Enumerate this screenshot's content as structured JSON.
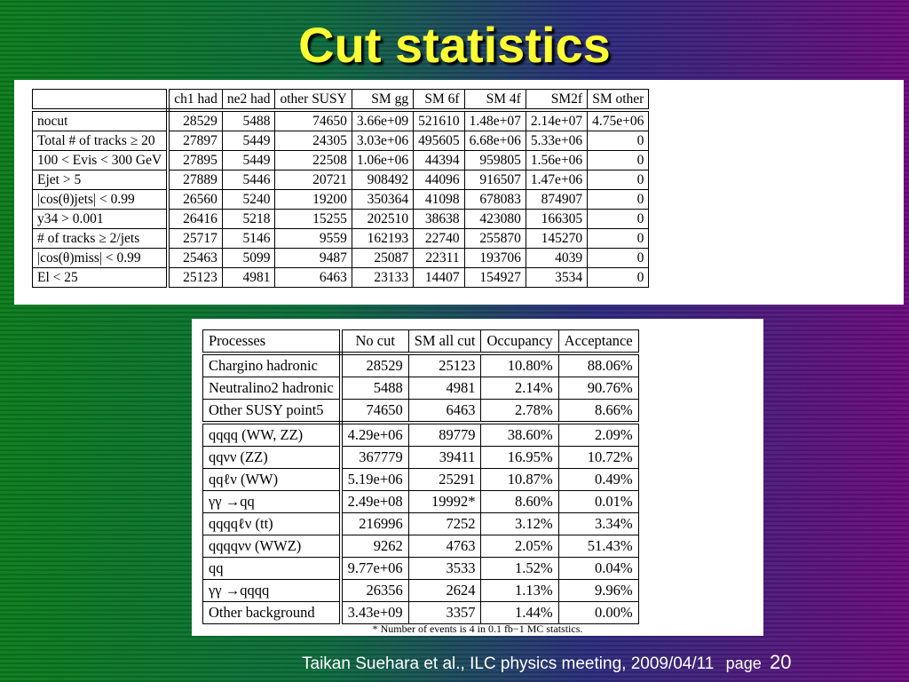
{
  "title": "Cut statistics",
  "table1": {
    "headers": [
      "ch1 had",
      "ne2 had",
      "other SUSY",
      "SM gg",
      "SM 6f",
      "SM 4f",
      "SM2f",
      "SM other"
    ],
    "rows": [
      {
        "label": "nocut",
        "values": [
          "28529",
          "5488",
          "74650",
          "3.66e+09",
          "521610",
          "1.48e+07",
          "2.14e+07",
          "4.75e+06"
        ]
      },
      {
        "label": "Total # of tracks ≥ 20",
        "values": [
          "27897",
          "5449",
          "24305",
          "3.03e+06",
          "495605",
          "6.68e+06",
          "5.33e+06",
          "0"
        ]
      },
      {
        "label": "100 < Evis < 300 GeV",
        "values": [
          "27895",
          "5449",
          "22508",
          "1.06e+06",
          "44394",
          "959805",
          "1.56e+06",
          "0"
        ]
      },
      {
        "label": "Ejet > 5",
        "values": [
          "27889",
          "5446",
          "20721",
          "908492",
          "44096",
          "916507",
          "1.47e+06",
          "0"
        ]
      },
      {
        "label": "|cos(θ)jets| < 0.99",
        "values": [
          "26560",
          "5240",
          "19200",
          "350364",
          "41098",
          "678083",
          "874907",
          "0"
        ]
      },
      {
        "label": "y34 > 0.001",
        "values": [
          "26416",
          "5218",
          "15255",
          "202510",
          "38638",
          "423080",
          "166305",
          "0"
        ]
      },
      {
        "label": "# of tracks ≥ 2/jets",
        "values": [
          "25717",
          "5146",
          "9559",
          "162193",
          "22740",
          "255870",
          "145270",
          "0"
        ]
      },
      {
        "label": "|cos(θ)miss| < 0.99",
        "values": [
          "25463",
          "5099",
          "9487",
          "25087",
          "22311",
          "193706",
          "4039",
          "0"
        ]
      },
      {
        "label": "El < 25",
        "values": [
          "25123",
          "4981",
          "6463",
          "23133",
          "14407",
          "154927",
          "3534",
          "0"
        ]
      }
    ]
  },
  "table2": {
    "headers": [
      "Processes",
      "No cut",
      "SM all cut",
      "Occupancy",
      "Acceptance"
    ],
    "rows": [
      {
        "label": "Chargino hadronic",
        "values": [
          "28529",
          "25123",
          "10.80%",
          "88.06%"
        ]
      },
      {
        "label": "Neutralino2 hadronic",
        "values": [
          "5488",
          "4981",
          "2.14%",
          "90.76%"
        ]
      },
      {
        "label": "Other SUSY point5",
        "values": [
          "74650",
          "6463",
          "2.78%",
          "8.66%"
        ]
      },
      {
        "label": "qqqq (WW, ZZ)",
        "values": [
          "4.29e+06",
          "89779",
          "38.60%",
          "2.09%"
        ]
      },
      {
        "label": "qqνν (ZZ)",
        "values": [
          "367779",
          "39411",
          "16.95%",
          "10.72%"
        ]
      },
      {
        "label": "qqℓν (WW)",
        "values": [
          "5.19e+06",
          "25291",
          "10.87%",
          "0.49%"
        ]
      },
      {
        "label": "γγ →qq",
        "values": [
          "2.49e+08",
          "19992*",
          "8.60%",
          "0.01%"
        ]
      },
      {
        "label": "qqqqℓν (tt)",
        "values": [
          "216996",
          "7252",
          "3.12%",
          "3.34%"
        ]
      },
      {
        "label": "qqqqνν (WWZ)",
        "values": [
          "9262",
          "4763",
          "2.05%",
          "51.43%"
        ]
      },
      {
        "label": "qq",
        "values": [
          "9.77e+06",
          "3533",
          "1.52%",
          "0.04%"
        ]
      },
      {
        "label": "γγ →qqqq",
        "values": [
          "26356",
          "2624",
          "1.13%",
          "9.96%"
        ]
      },
      {
        "label": "Other background",
        "values": [
          "3.43e+09",
          "3357",
          "1.44%",
          "0.00%"
        ]
      }
    ],
    "note": "* Number of events is 4 in 0.1 fb−1 MC statstics."
  },
  "footer": {
    "citation": "Taikan Suehara et al., ILC physics meeting, 2009/04/11",
    "page_label": "page",
    "page_number": "20"
  }
}
